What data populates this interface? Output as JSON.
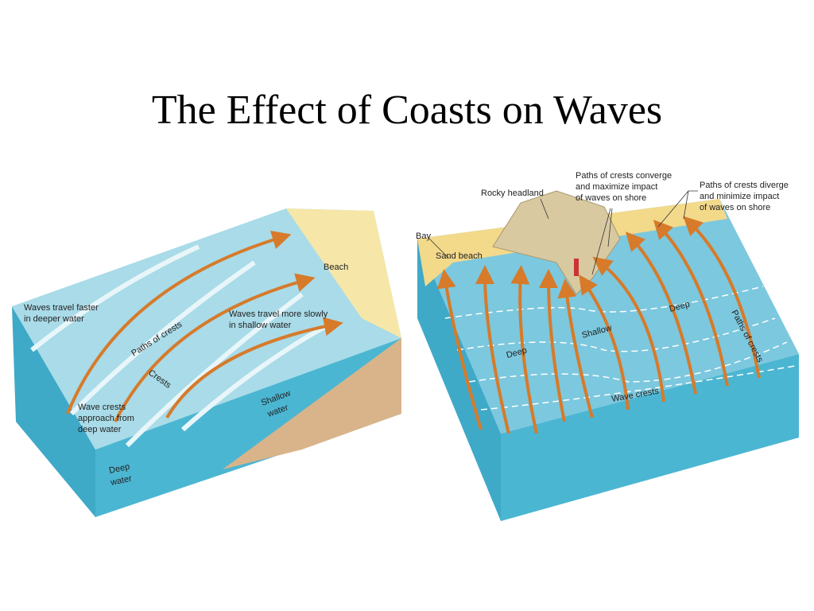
{
  "title": "The Effect of Coasts on Waves",
  "left_diagram": {
    "faster": [
      "Waves travel faster",
      "in deeper water"
    ],
    "paths": "Paths of crests",
    "crests": "Crests",
    "approach": [
      "Wave crests",
      "approach from",
      "deep water"
    ],
    "deep": [
      "Deep",
      "water"
    ],
    "shallow": [
      "Shallow",
      "water"
    ],
    "slowly": [
      "Waves travel more slowly",
      "in shallow water"
    ],
    "beach": "Beach"
  },
  "right_diagram": {
    "bay": "Bay",
    "sand": "Sand beach",
    "headland": "Rocky headland",
    "converge": [
      "Paths of crests converge",
      "and maximize impact",
      "of waves on shore"
    ],
    "diverge": [
      "Paths of crests diverge",
      "and minimize impact",
      "of waves on shore"
    ],
    "deep_left": "Deep",
    "deep_right": "Deep",
    "shallow": "Shallow",
    "crests": "Wave crests",
    "paths": "Paths of crests"
  }
}
